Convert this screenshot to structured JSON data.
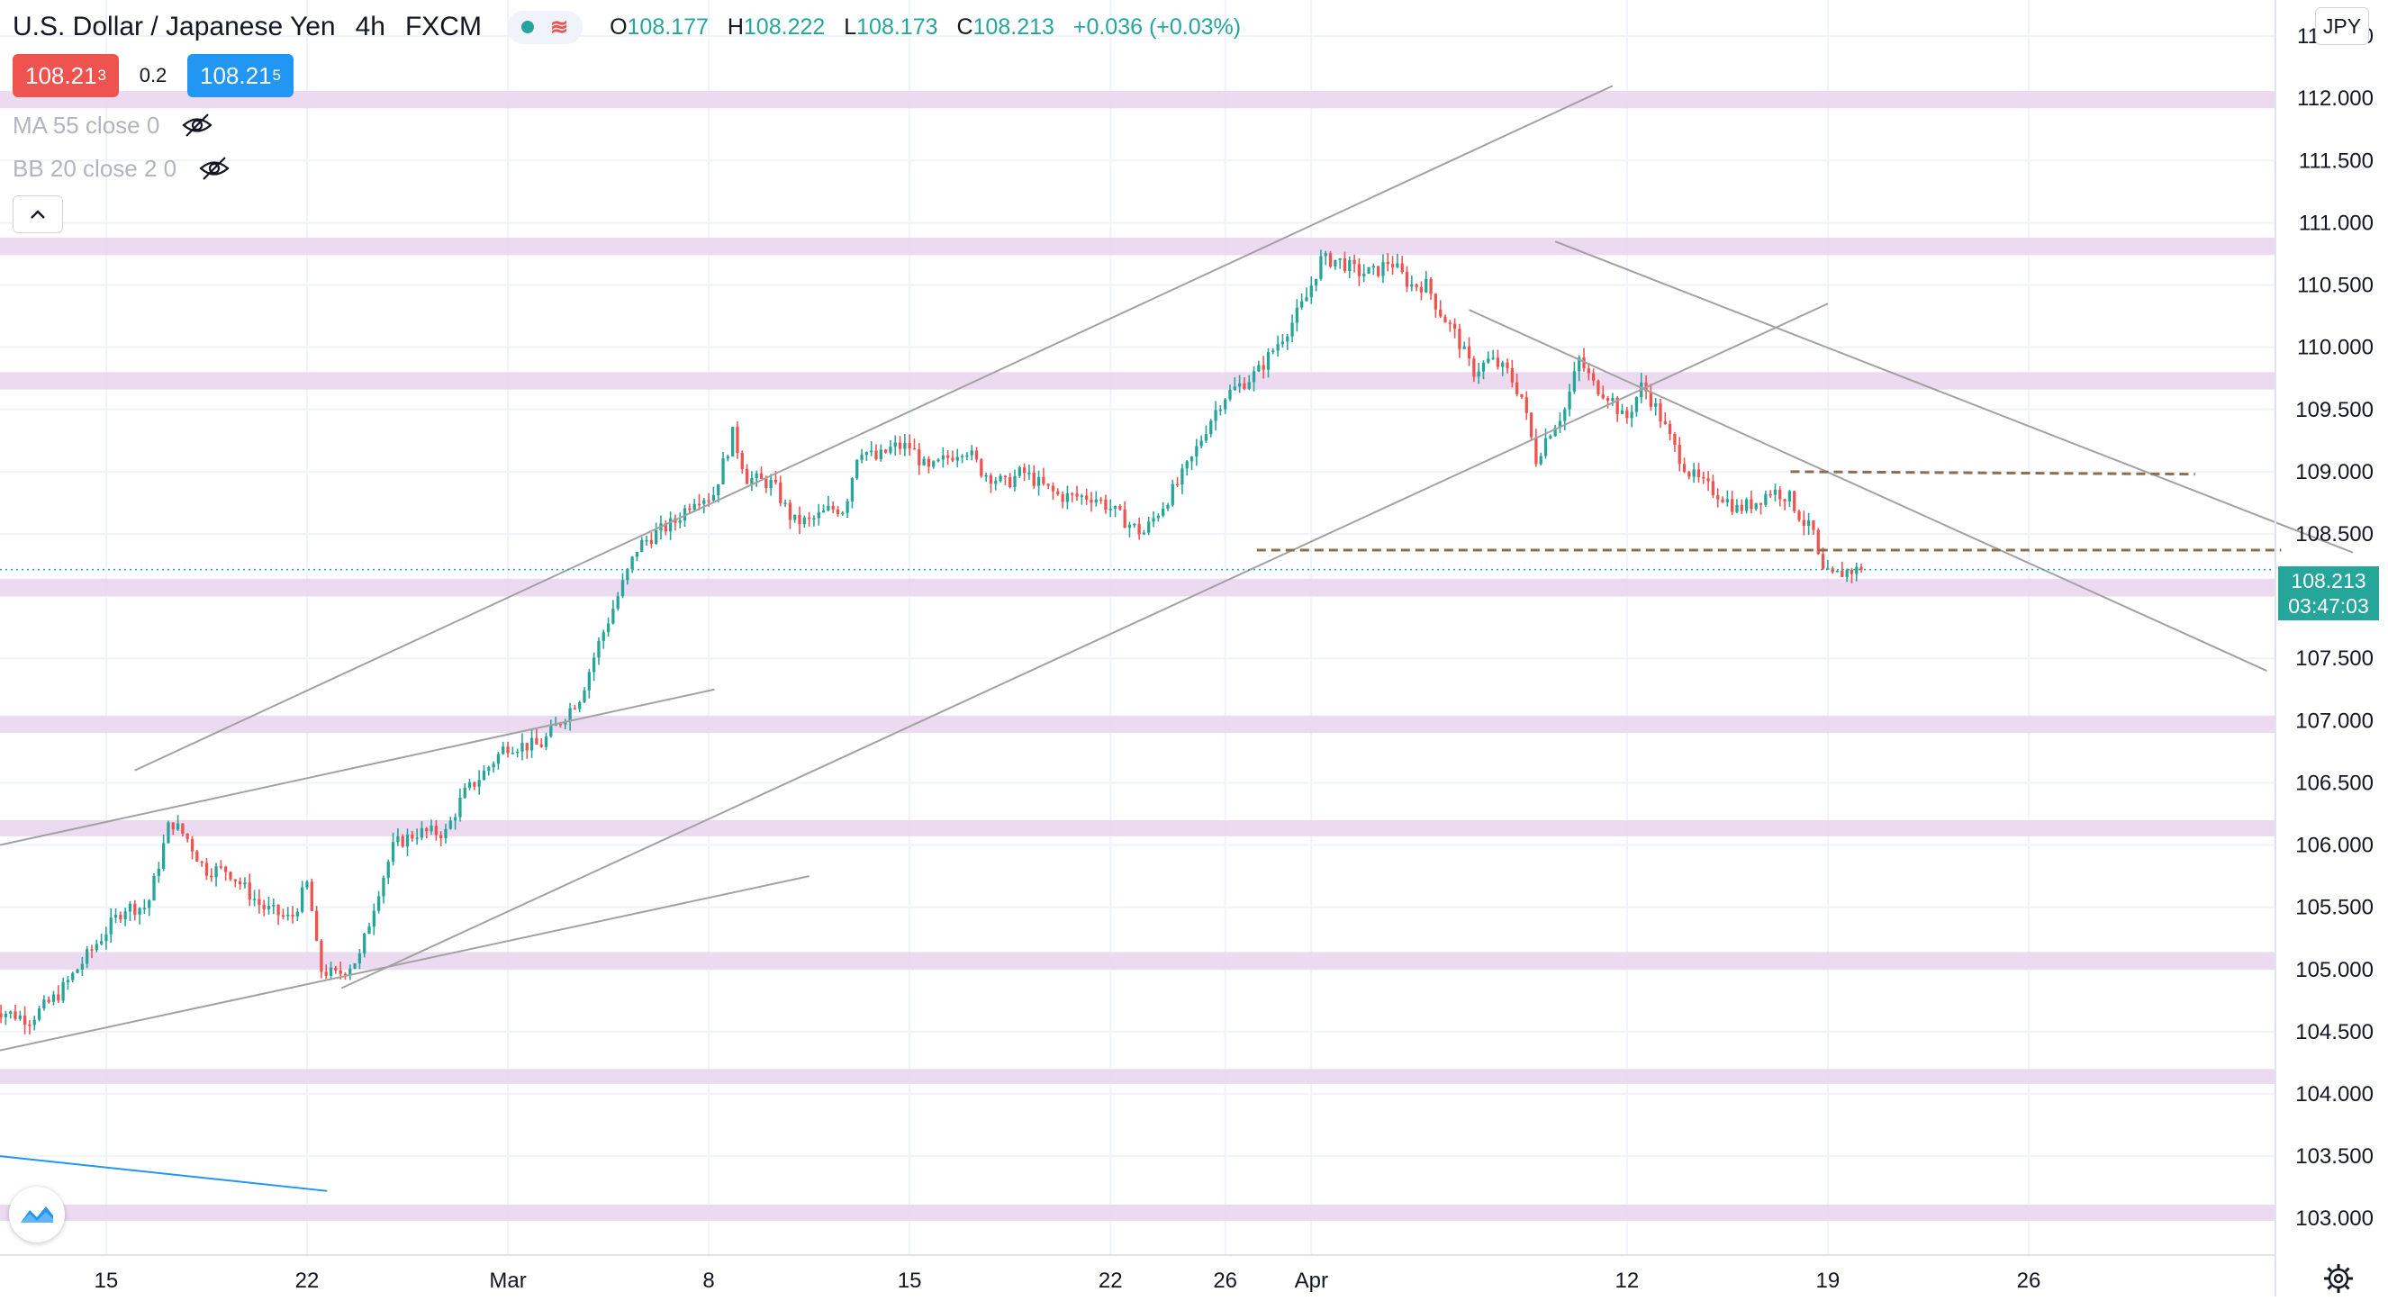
{
  "header": {
    "symbol": "U.S. Dollar / Japanese Yen",
    "interval": "4h",
    "exchange": "FXCM",
    "ohlc": {
      "o_label": "O",
      "o": "108.177",
      "h_label": "H",
      "h": "108.222",
      "l_label": "L",
      "l": "108.173",
      "c_label": "C",
      "c": "108.213",
      "change": "+0.036 (+0.03%)"
    }
  },
  "quote": {
    "sell": "108.21",
    "sell_sup": "3",
    "spread": "0.2",
    "buy": "108.21",
    "buy_sup": "5"
  },
  "indicators": [
    {
      "label": "MA 55 close 0"
    },
    {
      "label": "BB 20 close 2 0"
    }
  ],
  "price_scale": {
    "currency": "JPY",
    "last_price": "108.213",
    "countdown": "03:47:03"
  },
  "colors": {
    "up": "#26a69a",
    "down": "#ef5350",
    "zone": "#e9d4ee",
    "trend": "#a2a2a2",
    "dashed": "#8d6e4e",
    "blue_line": "#2196f3"
  },
  "chart_data": {
    "type": "candlestick",
    "series": "USDJPY 4h",
    "y_axis": {
      "ticks": [
        103.0,
        103.5,
        104.0,
        104.5,
        105.0,
        105.5,
        106.0,
        106.5,
        107.0,
        107.5,
        108.0,
        108.5,
        109.0,
        109.5,
        110.0,
        110.5,
        111.0,
        111.5,
        112.0,
        112.5
      ]
    },
    "ylim": [
      102.705,
      112.79
    ],
    "x_ticks": [
      {
        "label": "15",
        "d": 4
      },
      {
        "label": "22",
        "d": 11
      },
      {
        "label": "Mar",
        "d": 18
      },
      {
        "label": "8",
        "d": 25
      },
      {
        "label": "15",
        "d": 32
      },
      {
        "label": "22",
        "d": 39
      },
      {
        "label": "26",
        "d": 43
      },
      {
        "label": "Apr",
        "d": 46
      },
      {
        "label": "12",
        "d": 57
      },
      {
        "label": "19",
        "d": 64
      },
      {
        "label": "26",
        "d": 71
      }
    ],
    "x_range_days": [
      0.3,
      79.6
    ],
    "anchors": [
      [
        0,
        104.7
      ],
      [
        1.5,
        104.6
      ],
      [
        2.5,
        104.8
      ],
      [
        3.8,
        105.2
      ],
      [
        4.8,
        105.5
      ],
      [
        5.6,
        105.5
      ],
      [
        6.4,
        106.2
      ],
      [
        7.0,
        106.05
      ],
      [
        7.6,
        105.8
      ],
      [
        8.4,
        105.8
      ],
      [
        9.6,
        105.5
      ],
      [
        10.6,
        105.4
      ],
      [
        11.2,
        105.7
      ],
      [
        11.6,
        105.0
      ],
      [
        12.2,
        104.95
      ],
      [
        13.0,
        105.1
      ],
      [
        13.6,
        105.6
      ],
      [
        14.2,
        106.0
      ],
      [
        15.0,
        106.1
      ],
      [
        16.0,
        106.1
      ],
      [
        16.6,
        106.4
      ],
      [
        17.4,
        106.6
      ],
      [
        18.1,
        106.8
      ],
      [
        19.3,
        106.8
      ],
      [
        20.0,
        107.0
      ],
      [
        20.7,
        107.2
      ],
      [
        21.3,
        107.6
      ],
      [
        22.0,
        108.0
      ],
      [
        22.7,
        108.4
      ],
      [
        23.3,
        108.5
      ],
      [
        24.0,
        108.6
      ],
      [
        24.7,
        108.8
      ],
      [
        25.3,
        108.8
      ],
      [
        26.0,
        109.3
      ],
      [
        26.5,
        108.95
      ],
      [
        27.4,
        108.9
      ],
      [
        28.1,
        108.6
      ],
      [
        28.7,
        108.6
      ],
      [
        29.4,
        108.7
      ],
      [
        29.9,
        108.7
      ],
      [
        30.4,
        109.2
      ],
      [
        31.0,
        109.1
      ],
      [
        31.6,
        109.2
      ],
      [
        32.2,
        109.2
      ],
      [
        32.8,
        109.0
      ],
      [
        33.4,
        109.1
      ],
      [
        34.1,
        109.2
      ],
      [
        34.7,
        109.0
      ],
      [
        35.5,
        108.9
      ],
      [
        36.1,
        109.0
      ],
      [
        36.7,
        108.9
      ],
      [
        37.4,
        108.8
      ],
      [
        38.0,
        108.8
      ],
      [
        38.6,
        108.8
      ],
      [
        39.2,
        108.7
      ],
      [
        39.7,
        108.6
      ],
      [
        40.3,
        108.5
      ],
      [
        40.9,
        108.7
      ],
      [
        41.5,
        108.9
      ],
      [
        42.0,
        109.1
      ],
      [
        42.6,
        109.4
      ],
      [
        43.1,
        109.6
      ],
      [
        43.7,
        109.7
      ],
      [
        44.3,
        109.8
      ],
      [
        44.9,
        110.0
      ],
      [
        45.5,
        110.2
      ],
      [
        46.0,
        110.4
      ],
      [
        46.5,
        110.7
      ],
      [
        47.1,
        110.7
      ],
      [
        47.8,
        110.6
      ],
      [
        48.4,
        110.6
      ],
      [
        48.9,
        110.7
      ],
      [
        49.6,
        110.5
      ],
      [
        50.2,
        110.5
      ],
      [
        50.6,
        110.3
      ],
      [
        51.2,
        110.1
      ],
      [
        51.8,
        109.8
      ],
      [
        52.4,
        109.9
      ],
      [
        53.0,
        109.8
      ],
      [
        53.5,
        109.6
      ],
      [
        54.0,
        109.1
      ],
      [
        54.4,
        109.3
      ],
      [
        55.0,
        109.5
      ],
      [
        55.5,
        109.9
      ],
      [
        56.0,
        109.7
      ],
      [
        56.6,
        109.6
      ],
      [
        57.1,
        109.4
      ],
      [
        57.7,
        109.7
      ],
      [
        58.2,
        109.5
      ],
      [
        58.8,
        109.2
      ],
      [
        59.3,
        109.0
      ],
      [
        59.8,
        108.9
      ],
      [
        60.5,
        108.8
      ],
      [
        61.0,
        108.7
      ],
      [
        61.6,
        108.75
      ],
      [
        62.2,
        108.85
      ],
      [
        62.8,
        108.8
      ],
      [
        63.3,
        108.6
      ],
      [
        63.7,
        108.5
      ],
      [
        63.9,
        108.2
      ],
      [
        64.3,
        108.15
      ],
      [
        64.8,
        108.2
      ],
      [
        65.2,
        108.21
      ]
    ],
    "zones": [
      {
        "lo": 111.92,
        "hi": 112.06
      },
      {
        "lo": 110.74,
        "hi": 110.88
      },
      {
        "lo": 109.66,
        "hi": 109.8
      },
      {
        "lo": 108.0,
        "hi": 108.14
      },
      {
        "lo": 106.9,
        "hi": 107.04
      },
      {
        "lo": 106.07,
        "hi": 106.2
      },
      {
        "lo": 105.0,
        "hi": 105.14
      },
      {
        "lo": 104.08,
        "hi": 104.2
      },
      {
        "lo": 102.98,
        "hi": 103.11
      }
    ],
    "trendlines": [
      {
        "d1": 5.0,
        "p1": 106.6,
        "d2": 56.5,
        "p2": 112.1,
        "style": "solid"
      },
      {
        "d1": 0.3,
        "p1": 106.0,
        "d2": 25.2,
        "p2": 107.25,
        "style": "solid"
      },
      {
        "d1": 0.3,
        "p1": 104.35,
        "d2": 28.5,
        "p2": 105.75,
        "style": "solid"
      },
      {
        "d1": 12.2,
        "p1": 104.85,
        "d2": 64.0,
        "p2": 110.35,
        "style": "solid"
      },
      {
        "d1": 54.5,
        "p1": 110.85,
        "d2": 82.3,
        "p2": 108.35,
        "style": "solid"
      },
      {
        "d1": 51.5,
        "p1": 110.3,
        "d2": 79.3,
        "p2": 107.4,
        "style": "solid"
      },
      {
        "d1": 62.7,
        "p1": 109.0,
        "d2": 76.8,
        "p2": 108.98,
        "style": "dashed"
      },
      {
        "d1": 44.1,
        "p1": 108.37,
        "d2": 79.8,
        "p2": 108.37,
        "style": "dashed"
      },
      {
        "d1": 0.3,
        "p1": 103.5,
        "d2": 11.7,
        "p2": 103.22,
        "style": "blue"
      }
    ],
    "last_price": 108.213
  }
}
